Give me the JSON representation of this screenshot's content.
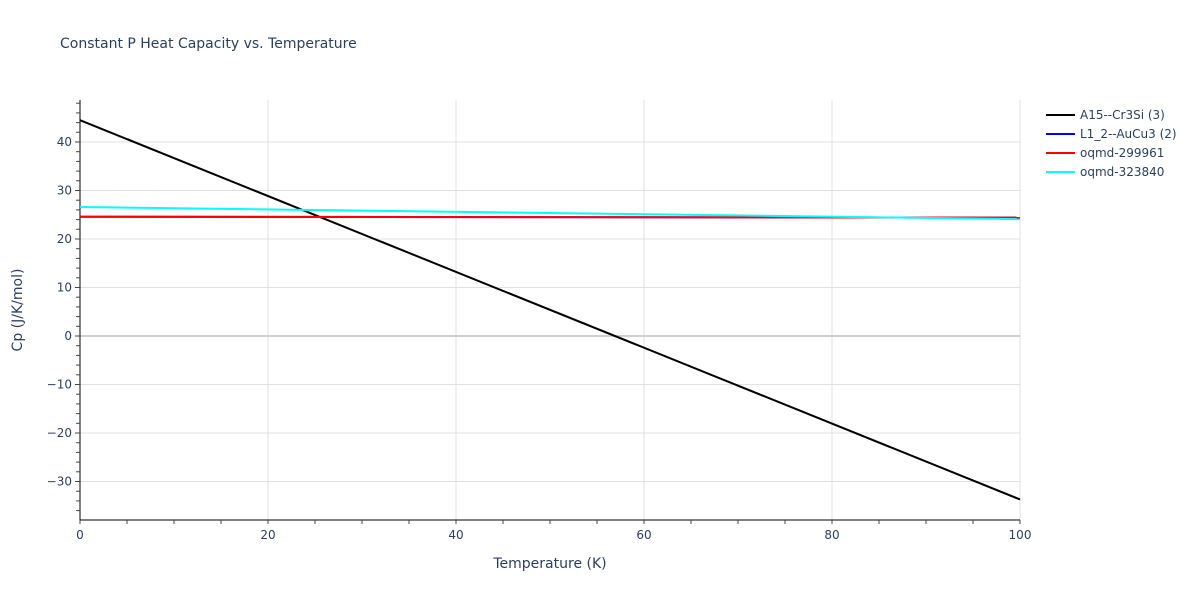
{
  "chart_data": {
    "type": "line",
    "title": "Constant P Heat Capacity vs. Temperature",
    "xlabel": "Temperature (K)",
    "ylabel": "Cp (J/K/mol)",
    "xlim": [
      0,
      100
    ],
    "ylim": [
      -38,
      49
    ],
    "x_ticks": [
      0,
      20,
      40,
      60,
      80,
      100
    ],
    "y_ticks": [
      -30,
      -20,
      -10,
      0,
      10,
      20,
      30,
      40
    ],
    "grid": true,
    "legend_position": "right",
    "x": [
      0,
      100
    ],
    "series": [
      {
        "name": "A15--Cr3Si (3)",
        "color": "#000000",
        "values": [
          44.5,
          -33.7
        ]
      },
      {
        "name": "L1_2--AuCu3 (2)",
        "color": "#0000ff",
        "values": [
          24.6,
          24.4
        ]
      },
      {
        "name": "oqmd-299961",
        "color": "#ff0000",
        "values": [
          24.6,
          24.4
        ]
      },
      {
        "name": "oqmd-323840",
        "color": "#00ffff",
        "values": [
          26.6,
          24.1
        ]
      }
    ]
  },
  "labels": {
    "title": "Constant P Heat Capacity vs. Temperature",
    "xlabel": "Temperature (K)",
    "ylabel": "Cp (J/K/mol)",
    "x_ticks": [
      "0",
      "20",
      "40",
      "60",
      "80",
      "100"
    ],
    "y_ticks": [
      "−30",
      "−20",
      "−10",
      "0",
      "10",
      "20",
      "30",
      "40"
    ],
    "legend": [
      "A15--Cr3Si (3)",
      "L1_2--AuCu3 (2)",
      "oqmd-299961",
      "oqmd-323840"
    ]
  }
}
